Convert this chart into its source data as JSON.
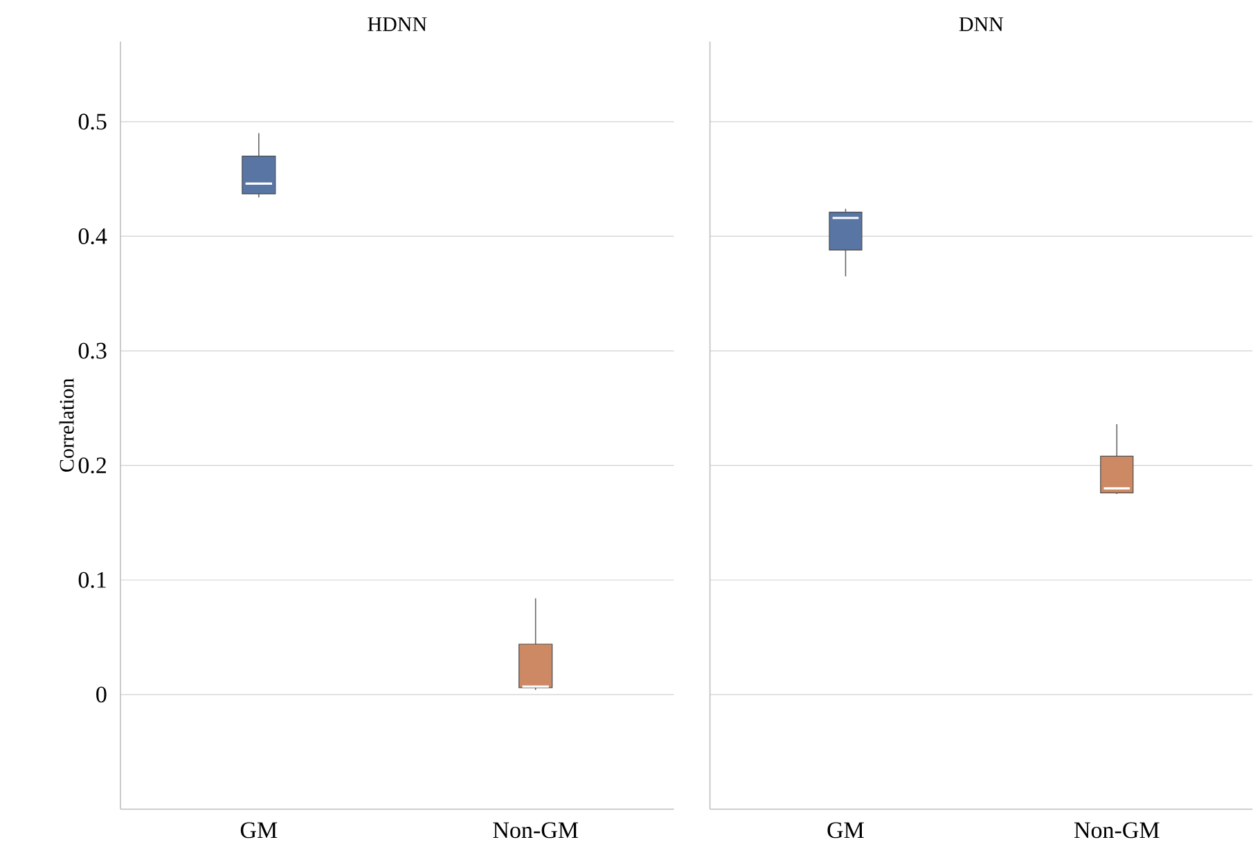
{
  "chart_data": [
    {
      "type": "box",
      "title": "HDNN",
      "ylabel": "Correlation",
      "categories": [
        "GM",
        "Non-GM"
      ],
      "colors": [
        "#5875a4",
        "#cc8963"
      ],
      "ylim": [
        -0.1,
        0.57
      ],
      "yticks": [
        0,
        0.1,
        0.2,
        0.3,
        0.4,
        0.5
      ],
      "grid": "y",
      "boxes": [
        {
          "low": 0.434,
          "q1": 0.437,
          "median": 0.446,
          "q3": 0.47,
          "high": 0.49
        },
        {
          "low": 0.004,
          "q1": 0.006,
          "median": 0.007,
          "q3": 0.044,
          "high": 0.084
        }
      ]
    },
    {
      "type": "box",
      "title": "DNN",
      "categories": [
        "GM",
        "Non-GM"
      ],
      "colors": [
        "#5875a4",
        "#cc8963"
      ],
      "ylim": [
        -0.1,
        0.57
      ],
      "yticks": [
        0,
        0.1,
        0.2,
        0.3,
        0.4,
        0.5
      ],
      "grid": "y",
      "tick_labels": "x",
      "boxes": [
        {
          "low": 0.365,
          "q1": 0.388,
          "median": 0.416,
          "q3": 0.421,
          "high": 0.424
        },
        {
          "low": 0.175,
          "q1": 0.176,
          "median": 0.18,
          "q3": 0.208,
          "high": 0.236
        }
      ]
    }
  ]
}
